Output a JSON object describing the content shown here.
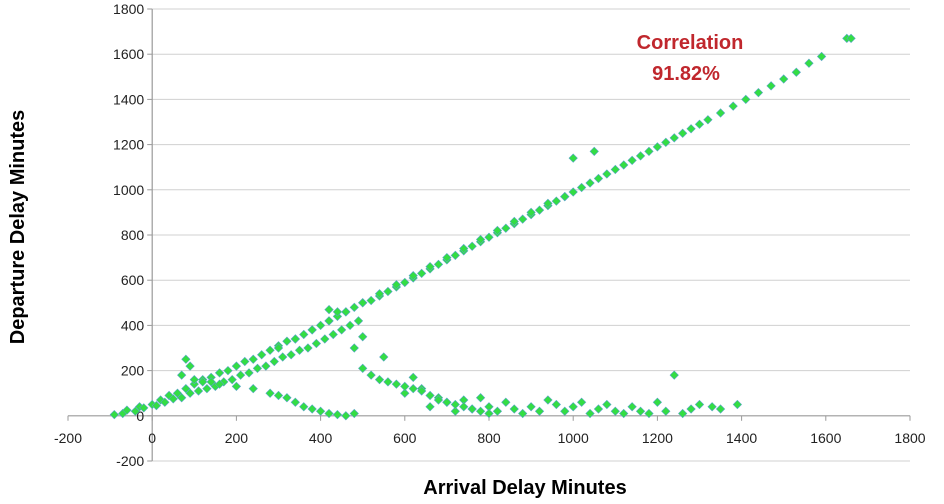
{
  "chart_data": {
    "type": "scatter",
    "xlabel": "Arrival Delay Minutes",
    "ylabel": "Departure Delay Minutes",
    "xlim": [
      -200,
      1800
    ],
    "ylim": [
      -200,
      1800
    ],
    "x_ticks": [
      -200,
      0,
      200,
      400,
      600,
      800,
      1000,
      1200,
      1400,
      1600,
      1800
    ],
    "y_ticks": [
      -200,
      0,
      200,
      400,
      600,
      800,
      1000,
      1200,
      1400,
      1600,
      1800
    ],
    "grid": "horizontal",
    "marker": "diamond",
    "marker_fill": "#33dd44",
    "marker_edge": "#5aa5c8",
    "annotation": {
      "line1": "Correlation",
      "line2": "91.82%",
      "color": "#c0272d"
    },
    "series": [
      {
        "points": [
          [
            -90,
            5
          ],
          [
            -70,
            10
          ],
          [
            -60,
            25
          ],
          [
            -40,
            20
          ],
          [
            -30,
            40
          ],
          [
            -20,
            35
          ],
          [
            0,
            50
          ],
          [
            10,
            45
          ],
          [
            20,
            70
          ],
          [
            30,
            60
          ],
          [
            40,
            90
          ],
          [
            50,
            75
          ],
          [
            60,
            100
          ],
          [
            70,
            80
          ],
          [
            80,
            120
          ],
          [
            90,
            100
          ],
          [
            100,
            140
          ],
          [
            110,
            110
          ],
          [
            120,
            160
          ],
          [
            130,
            120
          ],
          [
            140,
            170
          ],
          [
            150,
            130
          ],
          [
            160,
            190
          ],
          [
            170,
            150
          ],
          [
            180,
            200
          ],
          [
            190,
            160
          ],
          [
            200,
            220
          ],
          [
            210,
            180
          ],
          [
            220,
            240
          ],
          [
            230,
            190
          ],
          [
            240,
            250
          ],
          [
            250,
            210
          ],
          [
            260,
            270
          ],
          [
            270,
            220
          ],
          [
            280,
            290
          ],
          [
            290,
            240
          ],
          [
            300,
            310
          ],
          [
            310,
            260
          ],
          [
            320,
            330
          ],
          [
            330,
            270
          ],
          [
            340,
            340
          ],
          [
            350,
            290
          ],
          [
            360,
            360
          ],
          [
            370,
            300
          ],
          [
            380,
            380
          ],
          [
            390,
            320
          ],
          [
            400,
            400
          ],
          [
            410,
            340
          ],
          [
            420,
            420
          ],
          [
            430,
            360
          ],
          [
            440,
            440
          ],
          [
            450,
            380
          ],
          [
            460,
            460
          ],
          [
            470,
            400
          ],
          [
            480,
            480
          ],
          [
            490,
            420
          ],
          [
            500,
            500
          ],
          [
            520,
            510
          ],
          [
            540,
            530
          ],
          [
            560,
            550
          ],
          [
            580,
            570
          ],
          [
            600,
            590
          ],
          [
            620,
            610
          ],
          [
            640,
            630
          ],
          [
            660,
            650
          ],
          [
            680,
            670
          ],
          [
            700,
            690
          ],
          [
            720,
            710
          ],
          [
            740,
            730
          ],
          [
            760,
            750
          ],
          [
            780,
            770
          ],
          [
            800,
            790
          ],
          [
            820,
            810
          ],
          [
            840,
            830
          ],
          [
            860,
            850
          ],
          [
            880,
            870
          ],
          [
            900,
            890
          ],
          [
            920,
            910
          ],
          [
            940,
            930
          ],
          [
            960,
            950
          ],
          [
            980,
            970
          ],
          [
            1000,
            990
          ],
          [
            1020,
            1010
          ],
          [
            1040,
            1030
          ],
          [
            1060,
            1050
          ],
          [
            1080,
            1070
          ],
          [
            1100,
            1090
          ],
          [
            1120,
            1110
          ],
          [
            1140,
            1130
          ],
          [
            1160,
            1150
          ],
          [
            1180,
            1170
          ],
          [
            1200,
            1190
          ],
          [
            1220,
            1210
          ],
          [
            1240,
            1230
          ],
          [
            1260,
            1250
          ],
          [
            1280,
            1270
          ],
          [
            1300,
            1290
          ],
          [
            1320,
            1310
          ],
          [
            1350,
            1340
          ],
          [
            1380,
            1370
          ],
          [
            1410,
            1400
          ],
          [
            1440,
            1430
          ],
          [
            1470,
            1460
          ],
          [
            1500,
            1490
          ],
          [
            1530,
            1520
          ],
          [
            1560,
            1560
          ],
          [
            1590,
            1590
          ],
          [
            1650,
            1670
          ],
          [
            1660,
            1670
          ],
          [
            1050,
            1170
          ],
          [
            1000,
            1140
          ],
          [
            980,
            970
          ],
          [
            940,
            940
          ],
          [
            900,
            900
          ],
          [
            860,
            860
          ],
          [
            820,
            820
          ],
          [
            780,
            780
          ],
          [
            740,
            740
          ],
          [
            700,
            700
          ],
          [
            660,
            660
          ],
          [
            620,
            620
          ],
          [
            580,
            580
          ],
          [
            540,
            540
          ],
          [
            500,
            500
          ],
          [
            460,
            460
          ],
          [
            420,
            420
          ],
          [
            380,
            380
          ],
          [
            340,
            340
          ],
          [
            300,
            300
          ],
          [
            80,
            250
          ],
          [
            90,
            220
          ],
          [
            70,
            180
          ],
          [
            100,
            160
          ],
          [
            120,
            150
          ],
          [
            140,
            150
          ],
          [
            160,
            140
          ],
          [
            200,
            130
          ],
          [
            240,
            120
          ],
          [
            280,
            100
          ],
          [
            300,
            90
          ],
          [
            320,
            80
          ],
          [
            340,
            60
          ],
          [
            360,
            40
          ],
          [
            380,
            30
          ],
          [
            400,
            20
          ],
          [
            420,
            10
          ],
          [
            440,
            5
          ],
          [
            460,
            0
          ],
          [
            480,
            10
          ],
          [
            500,
            350
          ],
          [
            550,
            260
          ],
          [
            600,
            100
          ],
          [
            620,
            170
          ],
          [
            640,
            120
          ],
          [
            660,
            40
          ],
          [
            680,
            80
          ],
          [
            700,
            60
          ],
          [
            720,
            20
          ],
          [
            740,
            70
          ],
          [
            760,
            30
          ],
          [
            780,
            80
          ],
          [
            800,
            40
          ],
          [
            820,
            20
          ],
          [
            840,
            60
          ],
          [
            860,
            30
          ],
          [
            880,
            10
          ],
          [
            900,
            40
          ],
          [
            920,
            20
          ],
          [
            940,
            70
          ],
          [
            960,
            50
          ],
          [
            980,
            20
          ],
          [
            1000,
            40
          ],
          [
            1020,
            60
          ],
          [
            1040,
            10
          ],
          [
            1060,
            30
          ],
          [
            1080,
            50
          ],
          [
            1100,
            20
          ],
          [
            1120,
            10
          ],
          [
            1140,
            40
          ],
          [
            1160,
            20
          ],
          [
            1180,
            10
          ],
          [
            1200,
            60
          ],
          [
            1220,
            20
          ],
          [
            1240,
            180
          ],
          [
            1260,
            10
          ],
          [
            1280,
            30
          ],
          [
            1300,
            50
          ],
          [
            1330,
            40
          ],
          [
            1350,
            30
          ],
          [
            1390,
            50
          ],
          [
            420,
            470
          ],
          [
            440,
            460
          ],
          [
            480,
            300
          ],
          [
            500,
            210
          ],
          [
            520,
            180
          ],
          [
            540,
            160
          ],
          [
            560,
            150
          ],
          [
            580,
            140
          ],
          [
            600,
            130
          ],
          [
            620,
            120
          ],
          [
            640,
            110
          ],
          [
            660,
            90
          ],
          [
            680,
            70
          ],
          [
            700,
            60
          ],
          [
            720,
            50
          ],
          [
            740,
            40
          ],
          [
            760,
            30
          ],
          [
            780,
            20
          ],
          [
            800,
            10
          ]
        ]
      }
    ]
  }
}
